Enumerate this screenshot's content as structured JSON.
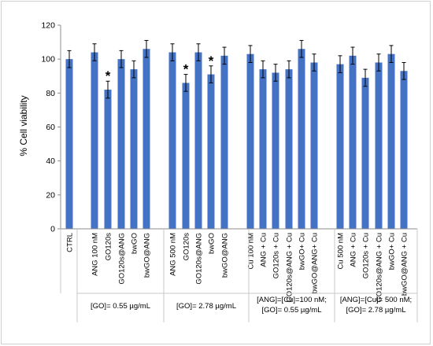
{
  "chart_data": {
    "type": "bar",
    "ylabel": "% Cell viability",
    "ylim": [
      0,
      120
    ],
    "yticks": [
      0,
      20,
      40,
      60,
      80,
      100,
      120
    ],
    "grid": false,
    "bar_color": "#4472C4",
    "categories": [
      "CTRL",
      "ANG 100 nM",
      "GO120s",
      "GO120s@ANG",
      "bwGO",
      "bwGO@ANG",
      "ANG 500 nM",
      "GO120s",
      "GO120s@ANG",
      "bwGO",
      "bwGO@ANG",
      "Cu 100 nM",
      "ANG + Cu",
      "GO120s + Cu",
      "GO120s@ANG + Cu",
      "bwGO+ Cu",
      "bwGO@ANG+ Cu",
      "Cu 500 nM",
      "ANG + Cu",
      "GO120s + Cu",
      "GO120s@ANG + Cu",
      "bwGO+ Cu",
      "bwGO@ANG + Cu"
    ],
    "values": [
      100,
      104,
      82,
      100,
      94,
      106,
      104,
      86,
      104,
      91,
      102,
      103,
      94,
      92,
      94,
      106,
      98,
      97,
      102,
      89,
      98,
      103,
      93
    ],
    "errors": [
      5,
      5,
      5,
      5,
      5,
      5,
      5,
      5,
      5,
      5,
      5,
      5,
      5,
      5,
      5,
      5,
      5,
      5,
      5,
      5,
      5,
      5,
      5
    ],
    "significant": [
      false,
      false,
      true,
      false,
      false,
      false,
      false,
      true,
      false,
      true,
      false,
      false,
      false,
      false,
      false,
      false,
      false,
      false,
      false,
      false,
      false,
      false,
      false
    ],
    "significance_marker": "*",
    "groups": [
      {
        "lines": [
          "[GO]= 0.55 µg/mL"
        ]
      },
      {
        "lines": [
          "[GO]= 2.78 µg/mL"
        ]
      },
      {
        "lines": [
          "[ANG]=[Cu]=100 nM;",
          "[GO]= 0.55 µg/mL"
        ]
      },
      {
        "lines": [
          "[ANG]=[Cu]= 500 nM;",
          "[GO]= 2.78 µg/mL"
        ]
      }
    ]
  }
}
